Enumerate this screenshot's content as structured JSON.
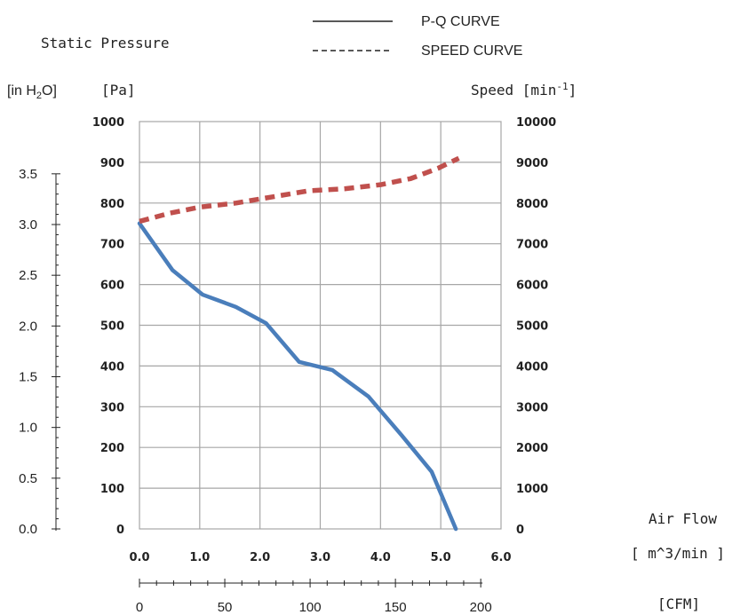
{
  "chart_data": {
    "type": "line",
    "title": "",
    "legend": {
      "placement": "top-center",
      "items": [
        {
          "label": "P-Q CURVE",
          "style": "solid"
        },
        {
          "label": "SPEED CURVE",
          "style": "dashed"
        }
      ]
    },
    "labels": {
      "static_pressure": "Static Pressure",
      "unit_inh2o": "[in H2O]",
      "unit_pa": "[Pa]",
      "unit_speed": "Speed [min-1]",
      "air_flow": "Air Flow",
      "unit_m3min": "[ m^3/min ]",
      "unit_cfm": "[CFM]"
    },
    "x_axis": {
      "label": "Air Flow [ m^3/min ]",
      "range": [
        0,
        6
      ],
      "ticks": [
        "0.0",
        "1.0",
        "2.0",
        "3.0",
        "4.0",
        "5.0",
        "6.0"
      ]
    },
    "x2_axis": {
      "label": "[CFM]",
      "range": [
        0,
        200
      ],
      "ticks": [
        "0",
        "50",
        "100",
        "150",
        "200"
      ]
    },
    "y_axis": {
      "label": "[Pa]",
      "range": [
        0,
        1000
      ],
      "ticks": [
        "0",
        "100",
        "200",
        "300",
        "400",
        "500",
        "600",
        "700",
        "800",
        "900",
        "1000"
      ]
    },
    "y_axis_inh2o": {
      "label": "[in H2O]",
      "range": [
        0,
        3.5
      ],
      "ticks": [
        "0.0",
        "0.5",
        "1.0",
        "1.5",
        "2.0",
        "2.5",
        "3.0",
        "3.5"
      ]
    },
    "y2_axis": {
      "label": "Speed [min-1]",
      "range": [
        0,
        10000
      ],
      "ticks": [
        "0",
        "1000",
        "2000",
        "3000",
        "4000",
        "5000",
        "6000",
        "7000",
        "8000",
        "9000",
        "10000"
      ]
    },
    "grid": true,
    "series": [
      {
        "name": "P-Q CURVE",
        "axis": "Pa",
        "color": "#4a7ebb",
        "x": [
          0.0,
          0.55,
          1.05,
          1.6,
          2.1,
          2.65,
          3.2,
          3.8,
          4.35,
          4.85,
          5.25
        ],
        "y": [
          750,
          635,
          575,
          545,
          505,
          410,
          390,
          325,
          230,
          140,
          0
        ]
      },
      {
        "name": "SPEED CURVE",
        "axis": "speed",
        "color": "#c0504d",
        "x": [
          0.0,
          0.5,
          1.0,
          1.6,
          2.2,
          2.8,
          3.4,
          4.0,
          4.5,
          4.95,
          5.3
        ],
        "y": [
          7550,
          7750,
          7900,
          8000,
          8150,
          8300,
          8350,
          8450,
          8600,
          8850,
          9100
        ]
      }
    ]
  }
}
